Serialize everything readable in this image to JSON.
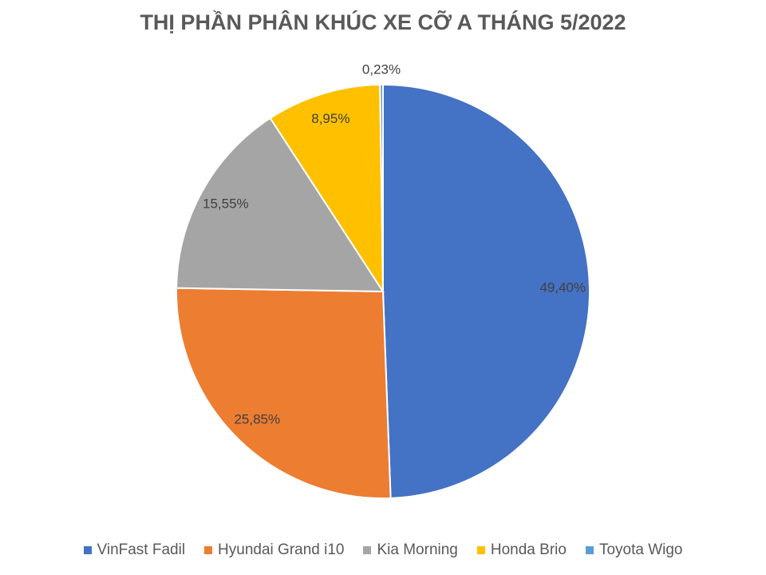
{
  "chart_data": {
    "type": "pie",
    "title": "THỊ PHẦN PHÂN KHÚC XE CỠ A THÁNG 5/2022",
    "categories": [
      "VinFast Fadil",
      "Hyundai Grand i10",
      "Kia Morning",
      "Honda Brio",
      "Toyota Wigo"
    ],
    "values": [
      49.4,
      25.85,
      15.55,
      8.95,
      0.23
    ],
    "value_labels": [
      "49,40%",
      "25,85%",
      "15,55%",
      "8,95%",
      "0,23%"
    ],
    "colors": [
      "#4472c4",
      "#ed7d31",
      "#a5a5a5",
      "#ffc000",
      "#5b9bd5"
    ],
    "legend": "bottom"
  }
}
